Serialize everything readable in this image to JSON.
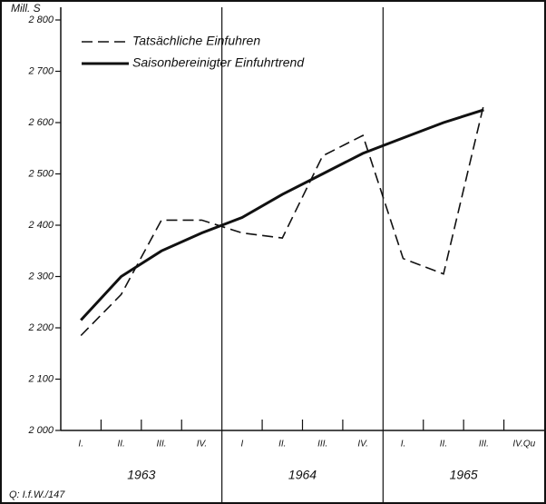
{
  "chart_data": {
    "type": "line",
    "ylabel": "Mill. S",
    "categories": [
      "I.",
      "II.",
      "III.",
      "IV.",
      "I",
      "II.",
      "III.",
      "IV.",
      "I.",
      "II.",
      "III.",
      "IV.Qu"
    ],
    "year_labels": [
      "1963",
      "1964",
      "1965"
    ],
    "series": [
      {
        "name": "Tatsächliche Einfuhren",
        "color": "#111111",
        "style": "dashed",
        "values": [
          2185,
          2265,
          2410,
          2410,
          2385,
          2375,
          2535,
          2575,
          2335,
          2305,
          2635,
          null
        ]
      },
      {
        "name": "Saisonbereinigter Einfuhrtrend",
        "color": "#111111",
        "style": "solid",
        "values": [
          2215,
          2300,
          2350,
          2385,
          2415,
          2460,
          2500,
          2540,
          2570,
          2600,
          2625,
          null
        ]
      }
    ],
    "ylim": [
      2000,
      2800
    ],
    "yticks": [
      {
        "value": 2000,
        "label": "2 000"
      },
      {
        "value": 2100,
        "label": "2 100"
      },
      {
        "value": 2200,
        "label": "2 200"
      },
      {
        "value": 2300,
        "label": "2 300"
      },
      {
        "value": 2400,
        "label": "2 400"
      },
      {
        "value": 2500,
        "label": "2 500"
      },
      {
        "value": 2600,
        "label": "2 600"
      },
      {
        "value": 2700,
        "label": "2 700"
      },
      {
        "value": 2800,
        "label": "2 800"
      }
    ],
    "legend": "upper left",
    "source": "Q: I.f.W./147"
  }
}
